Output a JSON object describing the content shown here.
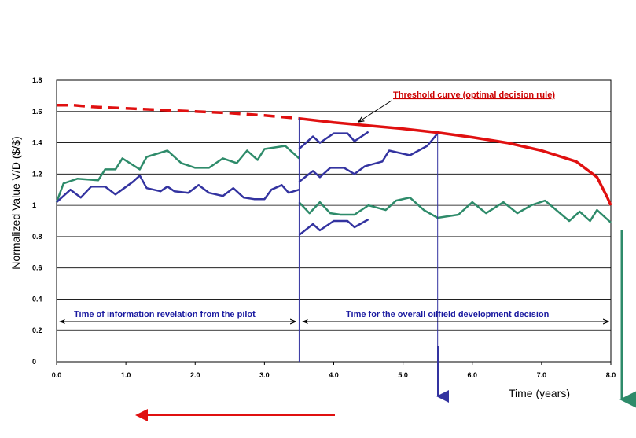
{
  "chart_data": {
    "type": "line",
    "ylabel": "Normalized Value V/D ($/$)",
    "xlabel": "Time (years)",
    "xlim": [
      0,
      8
    ],
    "ylim": [
      0,
      1.8
    ],
    "x_ticks": [
      "0.0",
      "1.0",
      "2.0",
      "3.0",
      "4.0",
      "5.0",
      "6.0",
      "7.0",
      "8.0"
    ],
    "y_ticks": [
      "0",
      "0.2",
      "0.4",
      "0.6",
      "0.8",
      "1",
      "1.2",
      "1.4",
      "1.6",
      "1.8"
    ],
    "grid": true,
    "colors": {
      "threshold": "#e01010",
      "blue": "#3333a0",
      "green": "#2e8b6a",
      "guide": "#3333a0",
      "red_arrow": "#e01010"
    },
    "pilot_time": 3.5,
    "decision_time": 5.5,
    "threshold_curve": {
      "name": "Threshold curve (optimal decision rule)",
      "dashed_until": 3.5,
      "points": [
        [
          0.0,
          1.64
        ],
        [
          0.25,
          1.64
        ],
        [
          0.5,
          1.63
        ],
        [
          1.0,
          1.62
        ],
        [
          1.5,
          1.61
        ],
        [
          2.0,
          1.6
        ],
        [
          2.5,
          1.59
        ],
        [
          3.0,
          1.575
        ],
        [
          3.5,
          1.555
        ],
        [
          4.0,
          1.53
        ],
        [
          4.5,
          1.51
        ],
        [
          5.0,
          1.49
        ],
        [
          5.5,
          1.465
        ],
        [
          6.0,
          1.435
        ],
        [
          6.5,
          1.4
        ],
        [
          7.0,
          1.35
        ],
        [
          7.5,
          1.28
        ],
        [
          7.8,
          1.18
        ],
        [
          7.95,
          1.05
        ],
        [
          8.0,
          1.0
        ]
      ]
    },
    "series": [
      {
        "name": "green path",
        "color": "green",
        "points": [
          [
            0.0,
            1.02
          ],
          [
            0.1,
            1.14
          ],
          [
            0.3,
            1.17
          ],
          [
            0.6,
            1.16
          ],
          [
            0.7,
            1.23
          ],
          [
            0.85,
            1.23
          ],
          [
            0.95,
            1.3
          ],
          [
            1.2,
            1.23
          ],
          [
            1.3,
            1.31
          ],
          [
            1.6,
            1.35
          ],
          [
            1.8,
            1.27
          ],
          [
            2.0,
            1.24
          ],
          [
            2.2,
            1.24
          ],
          [
            2.4,
            1.3
          ],
          [
            2.6,
            1.27
          ],
          [
            2.75,
            1.35
          ],
          [
            2.9,
            1.29
          ],
          [
            3.0,
            1.36
          ],
          [
            3.3,
            1.38
          ],
          [
            3.5,
            1.3
          ]
        ]
      },
      {
        "name": "blue path",
        "color": "blue",
        "points": [
          [
            0.0,
            1.02
          ],
          [
            0.2,
            1.1
          ],
          [
            0.35,
            1.05
          ],
          [
            0.5,
            1.12
          ],
          [
            0.7,
            1.12
          ],
          [
            0.85,
            1.07
          ],
          [
            1.1,
            1.15
          ],
          [
            1.2,
            1.19
          ],
          [
            1.3,
            1.11
          ],
          [
            1.5,
            1.09
          ],
          [
            1.6,
            1.12
          ],
          [
            1.7,
            1.09
          ],
          [
            1.9,
            1.08
          ],
          [
            2.05,
            1.13
          ],
          [
            2.2,
            1.08
          ],
          [
            2.4,
            1.06
          ],
          [
            2.55,
            1.11
          ],
          [
            2.7,
            1.05
          ],
          [
            2.85,
            1.04
          ],
          [
            3.0,
            1.04
          ],
          [
            3.1,
            1.1
          ],
          [
            3.25,
            1.13
          ],
          [
            3.35,
            1.08
          ],
          [
            3.5,
            1.1
          ]
        ]
      },
      {
        "name": "blue upper branch",
        "color": "blue",
        "points": [
          [
            3.5,
            1.36
          ],
          [
            3.7,
            1.44
          ],
          [
            3.8,
            1.4
          ],
          [
            4.0,
            1.46
          ],
          [
            4.2,
            1.46
          ],
          [
            4.3,
            1.41
          ],
          [
            4.5,
            1.47
          ]
        ]
      },
      {
        "name": "blue middle branch",
        "color": "blue",
        "points": [
          [
            3.5,
            1.15
          ],
          [
            3.7,
            1.22
          ],
          [
            3.8,
            1.18
          ],
          [
            3.95,
            1.24
          ],
          [
            4.15,
            1.24
          ],
          [
            4.3,
            1.2
          ],
          [
            4.45,
            1.25
          ],
          [
            4.7,
            1.28
          ],
          [
            4.8,
            1.35
          ],
          [
            5.1,
            1.32
          ],
          [
            5.35,
            1.38
          ],
          [
            5.5,
            1.46
          ]
        ]
      },
      {
        "name": "blue lower branch",
        "color": "blue",
        "points": [
          [
            3.5,
            0.81
          ],
          [
            3.7,
            0.88
          ],
          [
            3.8,
            0.84
          ],
          [
            4.0,
            0.9
          ],
          [
            4.2,
            0.9
          ],
          [
            4.3,
            0.86
          ],
          [
            4.5,
            0.91
          ]
        ]
      },
      {
        "name": "green branch",
        "color": "green",
        "points": [
          [
            3.5,
            1.02
          ],
          [
            3.65,
            0.95
          ],
          [
            3.8,
            1.02
          ],
          [
            3.95,
            0.95
          ],
          [
            4.1,
            0.94
          ],
          [
            4.3,
            0.94
          ],
          [
            4.5,
            1.0
          ],
          [
            4.75,
            0.97
          ],
          [
            4.9,
            1.03
          ],
          [
            5.1,
            1.05
          ],
          [
            5.3,
            0.97
          ],
          [
            5.5,
            0.92
          ],
          [
            5.8,
            0.94
          ],
          [
            6.0,
            1.02
          ],
          [
            6.2,
            0.95
          ],
          [
            6.45,
            1.02
          ],
          [
            6.65,
            0.95
          ],
          [
            6.85,
            1.0
          ],
          [
            7.05,
            1.03
          ],
          [
            7.4,
            0.9
          ],
          [
            7.55,
            0.96
          ],
          [
            7.7,
            0.9
          ],
          [
            7.8,
            0.97
          ],
          [
            8.0,
            0.89
          ]
        ]
      }
    ],
    "annotations": {
      "pilot_phase": "Time of information revelation from the pilot",
      "decision_phase": "Time for the overall oilfield development decision"
    }
  }
}
